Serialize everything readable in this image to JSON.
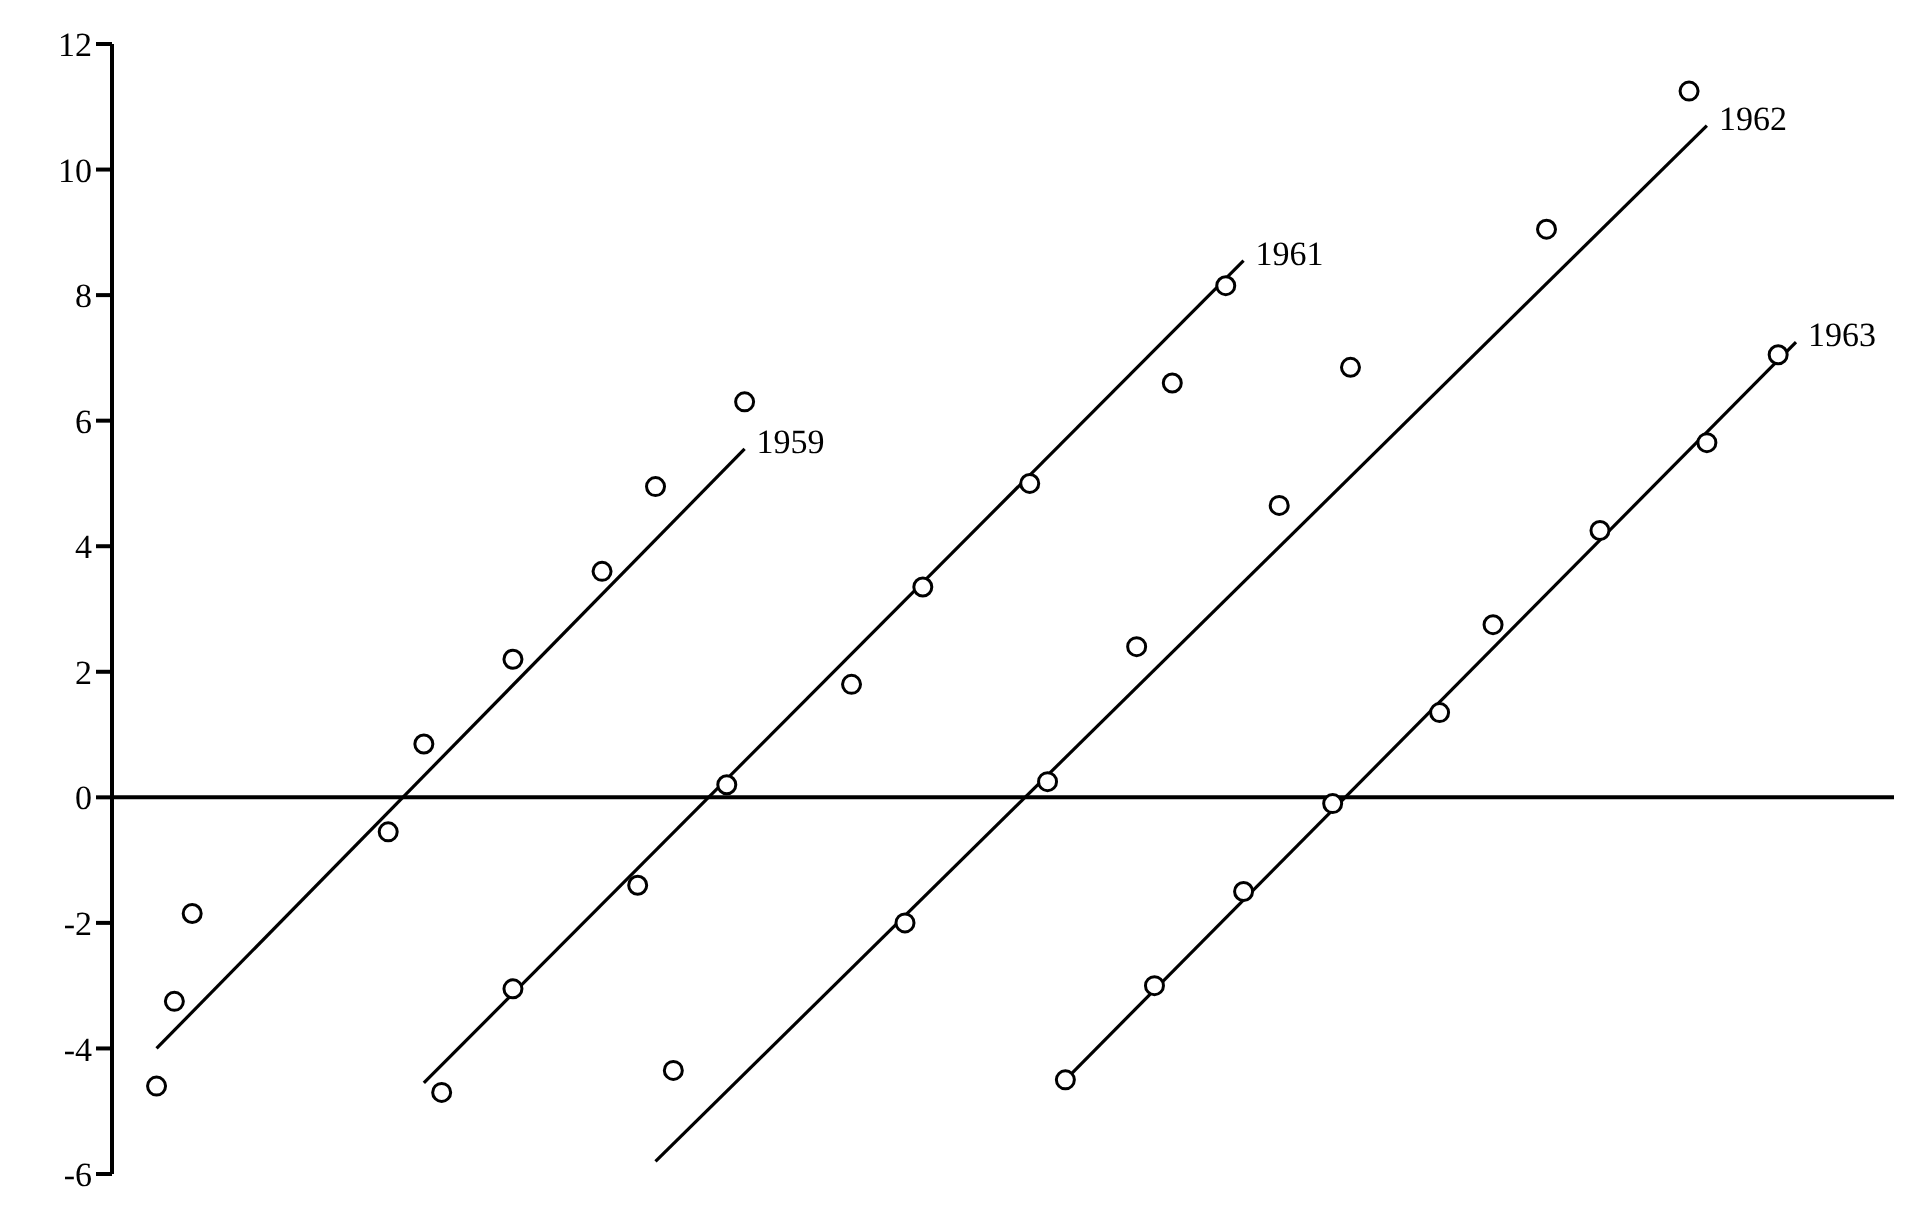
{
  "chart_data": {
    "type": "scatter",
    "ylim": [
      -6,
      12
    ],
    "yticks": [
      -6,
      -4,
      -2,
      0,
      2,
      4,
      6,
      8,
      10,
      12
    ],
    "tick_labels": "y",
    "grid": false,
    "legend": false,
    "marker": "circle",
    "categories": [
      null,
      null,
      null,
      null,
      null,
      null,
      null,
      null,
      null,
      null,
      null,
      null,
      null,
      null,
      null,
      null,
      null,
      null,
      null,
      null,
      null,
      null,
      null,
      null,
      null,
      null,
      null,
      null,
      null,
      null,
      null,
      null,
      null,
      null,
      null,
      null,
      null,
      null,
      null,
      null,
      null,
      null,
      null,
      null,
      null,
      null,
      null,
      null,
      null,
      null,
      null,
      null,
      null,
      null,
      null,
      null,
      null,
      null,
      null,
      null,
      null,
      null,
      null,
      null,
      null,
      null,
      null,
      null,
      null,
      null,
      null,
      null,
      null,
      null,
      null,
      null,
      null,
      null,
      null,
      null,
      null,
      null,
      null,
      null,
      null,
      null,
      null,
      null,
      null,
      null,
      null,
      null,
      null,
      null,
      null,
      null,
      null,
      null,
      null,
      null
    ],
    "ref_lines": [
      {
        "axis": "y",
        "value": 0,
        "color": "#000000"
      }
    ],
    "series": [
      {
        "color": "#000000",
        "values": [
          null,
          null,
          -4.6,
          -3.25,
          -1.85,
          null,
          null,
          null,
          null,
          null,
          null,
          null,
          null,
          null,
          null,
          -0.55,
          null,
          0.85,
          null,
          null,
          null,
          null,
          2.2,
          null,
          null,
          null,
          null,
          3.6,
          null,
          null,
          4.95,
          null,
          null,
          null,
          null,
          6.3,
          null,
          null,
          null,
          null,
          null,
          null,
          null,
          null,
          null,
          null,
          null,
          null,
          null,
          null,
          null,
          null,
          null,
          null,
          null,
          null,
          null,
          null,
          null,
          null,
          null,
          null,
          null,
          null,
          null,
          null,
          null,
          null,
          null,
          null,
          null,
          null,
          null,
          null,
          null,
          null,
          null,
          null,
          null,
          null,
          null,
          null,
          null,
          null,
          null,
          null,
          null,
          null,
          null,
          null,
          null,
          null,
          null,
          null,
          null,
          null,
          null,
          null,
          null,
          null
        ]
      },
      {
        "color": "#000000",
        "values": [
          null,
          null,
          null,
          null,
          null,
          null,
          null,
          null,
          null,
          null,
          null,
          null,
          null,
          null,
          null,
          null,
          null,
          null,
          -4.7,
          null,
          null,
          null,
          -3.05,
          null,
          null,
          null,
          null,
          null,
          null,
          -1.4,
          null,
          null,
          null,
          null,
          0.2,
          null,
          null,
          null,
          null,
          null,
          null,
          1.8,
          null,
          null,
          null,
          3.35,
          null,
          null,
          null,
          null,
          null,
          5.0,
          null,
          null,
          null,
          null,
          null,
          null,
          null,
          6.6,
          null,
          null,
          8.15,
          null,
          null,
          null,
          null,
          null,
          null,
          null,
          null,
          null,
          null,
          null,
          null,
          null,
          null,
          null,
          null,
          null,
          null,
          null,
          null,
          null,
          null,
          null,
          null,
          null,
          null,
          null,
          null,
          null,
          null,
          null,
          null,
          null,
          null,
          null,
          null,
          null
        ]
      },
      {
        "color": "#000000",
        "values": [
          null,
          null,
          null,
          null,
          null,
          null,
          null,
          null,
          null,
          null,
          null,
          null,
          null,
          null,
          null,
          null,
          null,
          null,
          null,
          null,
          null,
          null,
          null,
          null,
          null,
          null,
          null,
          null,
          null,
          null,
          null,
          -4.35,
          null,
          null,
          null,
          null,
          null,
          null,
          null,
          null,
          null,
          null,
          null,
          null,
          -2.0,
          null,
          null,
          null,
          null,
          null,
          null,
          null,
          0.25,
          null,
          null,
          null,
          null,
          2.4,
          null,
          null,
          null,
          null,
          null,
          null,
          null,
          4.65,
          null,
          null,
          null,
          6.85,
          null,
          null,
          null,
          null,
          null,
          null,
          null,
          null,
          null,
          null,
          9.05,
          null,
          null,
          null,
          null,
          null,
          null,
          null,
          11.25,
          null,
          null,
          null,
          null,
          null,
          null,
          null,
          null,
          null,
          null,
          null
        ]
      },
      {
        "color": "#000000",
        "values": [
          null,
          null,
          null,
          null,
          null,
          null,
          null,
          null,
          null,
          null,
          null,
          null,
          null,
          null,
          null,
          null,
          null,
          null,
          null,
          null,
          null,
          null,
          null,
          null,
          null,
          null,
          null,
          null,
          null,
          null,
          null,
          null,
          null,
          null,
          null,
          null,
          null,
          null,
          null,
          null,
          null,
          null,
          null,
          null,
          null,
          null,
          null,
          null,
          null,
          null,
          null,
          null,
          null,
          -4.5,
          null,
          null,
          null,
          null,
          -3.0,
          null,
          null,
          null,
          null,
          -1.5,
          null,
          null,
          null,
          null,
          -0.1,
          null,
          null,
          null,
          null,
          null,
          1.35,
          null,
          null,
          2.75,
          null,
          null,
          null,
          null,
          null,
          4.25,
          null,
          null,
          null,
          null,
          null,
          5.65,
          null,
          null,
          null,
          7.05,
          null,
          null,
          null,
          null,
          null,
          null
        ]
      },
      {
        "type": "line",
        "name": "1959",
        "color": "#000000",
        "marker": "none",
        "values": [
          null,
          null,
          -4.0,
          null,
          null,
          null,
          null,
          null,
          null,
          null,
          null,
          null,
          null,
          null,
          null,
          null,
          null,
          null,
          null,
          null,
          null,
          null,
          null,
          null,
          null,
          null,
          null,
          null,
          null,
          null,
          null,
          null,
          null,
          null,
          null,
          5.55,
          null,
          null,
          null,
          null,
          null,
          null,
          null,
          null,
          null,
          null,
          null,
          null,
          null,
          null,
          null,
          null,
          null,
          null,
          null,
          null,
          null,
          null,
          null,
          null,
          null,
          null,
          null,
          null,
          null,
          null,
          null,
          null,
          null,
          null,
          null,
          null,
          null,
          null,
          null,
          null,
          null,
          null,
          null,
          null,
          null,
          null,
          null,
          null,
          null,
          null,
          null,
          null,
          null,
          null,
          null,
          null,
          null,
          null,
          null,
          null,
          null,
          null,
          null,
          null
        ]
      },
      {
        "type": "line",
        "name": "1961",
        "color": "#000000",
        "marker": "none",
        "values": [
          null,
          null,
          null,
          null,
          null,
          null,
          null,
          null,
          null,
          null,
          null,
          null,
          null,
          null,
          null,
          null,
          null,
          -4.55,
          null,
          null,
          null,
          null,
          null,
          null,
          null,
          null,
          null,
          null,
          null,
          null,
          null,
          null,
          null,
          null,
          null,
          null,
          null,
          null,
          null,
          null,
          null,
          null,
          null,
          null,
          null,
          null,
          null,
          null,
          null,
          null,
          null,
          null,
          null,
          null,
          null,
          null,
          null,
          null,
          null,
          null,
          null,
          null,
          null,
          8.55,
          null,
          null,
          null,
          null,
          null,
          null,
          null,
          null,
          null,
          null,
          null,
          null,
          null,
          null,
          null,
          null,
          null,
          null,
          null,
          null,
          null,
          null,
          null,
          null,
          null,
          null,
          null,
          null,
          null,
          null,
          null,
          null,
          null,
          null,
          null,
          null
        ]
      },
      {
        "type": "line",
        "name": "1962",
        "color": "#000000",
        "marker": "none",
        "values": [
          null,
          null,
          null,
          null,
          null,
          null,
          null,
          null,
          null,
          null,
          null,
          null,
          null,
          null,
          null,
          null,
          null,
          null,
          null,
          null,
          null,
          null,
          null,
          null,
          null,
          null,
          null,
          null,
          null,
          null,
          -5.8,
          null,
          null,
          null,
          null,
          null,
          null,
          null,
          null,
          null,
          null,
          null,
          null,
          null,
          null,
          null,
          null,
          null,
          null,
          null,
          null,
          null,
          null,
          null,
          null,
          null,
          null,
          null,
          null,
          null,
          null,
          null,
          null,
          null,
          null,
          null,
          null,
          null,
          null,
          null,
          null,
          null,
          null,
          null,
          null,
          null,
          null,
          null,
          null,
          null,
          null,
          null,
          null,
          null,
          null,
          null,
          null,
          null,
          null,
          10.7,
          null,
          null,
          null,
          null,
          null,
          null,
          null,
          null,
          null,
          null
        ]
      },
      {
        "type": "line",
        "name": "1963",
        "color": "#000000",
        "marker": "none",
        "values": [
          null,
          null,
          null,
          null,
          null,
          null,
          null,
          null,
          null,
          null,
          null,
          null,
          null,
          null,
          null,
          null,
          null,
          null,
          null,
          null,
          null,
          null,
          null,
          null,
          null,
          null,
          null,
          null,
          null,
          null,
          null,
          null,
          null,
          null,
          null,
          null,
          null,
          null,
          null,
          null,
          null,
          null,
          null,
          null,
          null,
          null,
          null,
          null,
          null,
          null,
          null,
          null,
          null,
          -4.5,
          null,
          null,
          null,
          null,
          null,
          null,
          null,
          null,
          null,
          null,
          null,
          null,
          null,
          null,
          null,
          null,
          null,
          null,
          null,
          null,
          null,
          null,
          null,
          null,
          null,
          null,
          null,
          null,
          null,
          null,
          null,
          null,
          null,
          null,
          null,
          null,
          null,
          null,
          null,
          null,
          7.25,
          null,
          null,
          null,
          null,
          null
        ]
      }
    ]
  }
}
